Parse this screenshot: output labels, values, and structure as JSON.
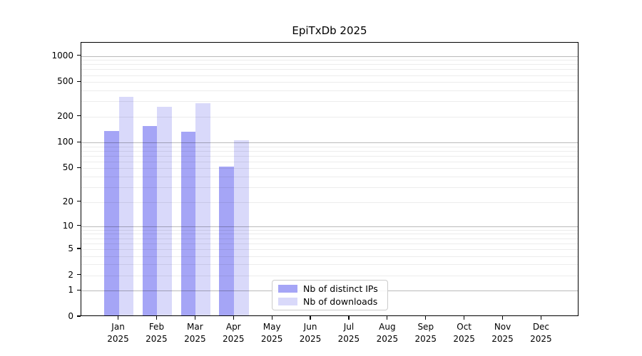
{
  "title": "EpiTxDb 2025",
  "year_label": "2025",
  "months": [
    "Jan",
    "Feb",
    "Mar",
    "Apr",
    "May",
    "Jun",
    "Jul",
    "Aug",
    "Sep",
    "Oct",
    "Nov",
    "Dec"
  ],
  "colors": {
    "bar_distinct_ips": "#a5a5f6",
    "bar_downloads": "#d9d9fa",
    "grid_major": "rgba(0,0,0,0.27)",
    "grid_minor": "rgba(0,0,0,0.075)",
    "axis": "#000000",
    "text": "#000000",
    "legend_border": "#cbcbcb",
    "background": "#ffffff"
  },
  "legend": {
    "items": [
      {
        "label": "Nb of distinct IPs",
        "color": "#a5a5f6"
      },
      {
        "label": "Nb of downloads",
        "color": "#d9d9fa"
      }
    ]
  },
  "chart_data": {
    "type": "bar",
    "title": "EpiTxDb 2025",
    "categories": [
      "Jan 2025",
      "Feb 2025",
      "Mar 2025",
      "Apr 2025",
      "May 2025",
      "Jun 2025",
      "Jul 2025",
      "Aug 2025",
      "Sep 2025",
      "Oct 2025",
      "Nov 2025",
      "Dec 2025"
    ],
    "series": [
      {
        "name": "Nb of distinct IPs",
        "color": "#a5a5f6",
        "values": [
          131,
          150,
          128,
          50,
          0,
          0,
          0,
          0,
          0,
          0,
          0,
          0
        ]
      },
      {
        "name": "Nb of downloads",
        "color": "#d9d9fa",
        "values": [
          326,
          250,
          275,
          103,
          0,
          0,
          0,
          0,
          0,
          0,
          0,
          0
        ]
      }
    ],
    "xlabel": "",
    "ylabel": "",
    "yscale": "log10(1+v)",
    "yticks": [
      0,
      1,
      2,
      5,
      10,
      20,
      50,
      100,
      200,
      500,
      1000
    ],
    "ylim": [
      0,
      1420
    ],
    "grid": "horizontal major at 1,10,100,1000 and minor log subdivisions",
    "legend_position": "inside lower-center"
  }
}
